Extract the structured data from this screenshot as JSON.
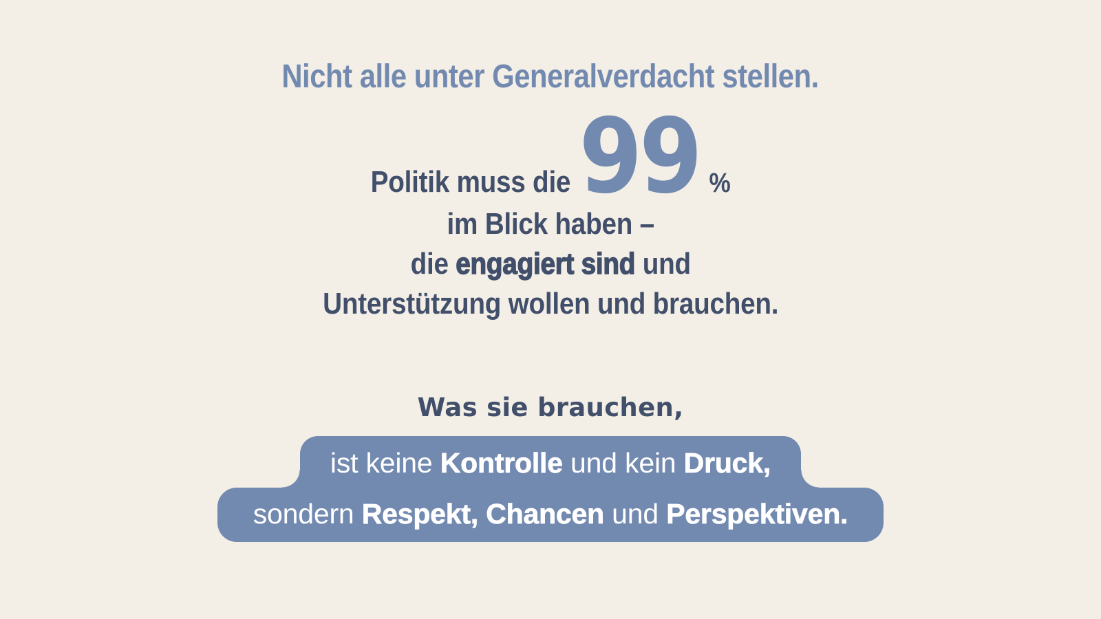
{
  "colors": {
    "background": "#F3EEE6",
    "accent_blue": "#7289B0",
    "navy": "#414F6B",
    "highlight_text": "#FFFFFF"
  },
  "headline": {
    "text": "Nicht alle unter Generalverdacht stellen."
  },
  "statement": {
    "line1_prefix": "Politik muss die",
    "big_number": "99",
    "percent_sign": "%",
    "line2": "im Blick haben –",
    "line3": {
      "prefix": "die ",
      "bold": "engagiert sind",
      "suffix": " und"
    },
    "line4": "Unterstützung wollen und brauchen."
  },
  "secondary": {
    "lead": "Was sie brauchen,"
  },
  "highlight": {
    "line1": [
      {
        "text": "ist keine ",
        "bold": false
      },
      {
        "text": "Kontrolle",
        "bold": true
      },
      {
        "text": " und kein ",
        "bold": false
      },
      {
        "text": "Druck,",
        "bold": true
      }
    ],
    "line2": [
      {
        "text": "sondern ",
        "bold": false
      },
      {
        "text": "Respekt,",
        "bold": true
      },
      {
        "text": " ",
        "bold": false
      },
      {
        "text": "Chancen",
        "bold": true
      },
      {
        "text": " und ",
        "bold": false
      },
      {
        "text": "Perspektiven.",
        "bold": true
      }
    ]
  }
}
